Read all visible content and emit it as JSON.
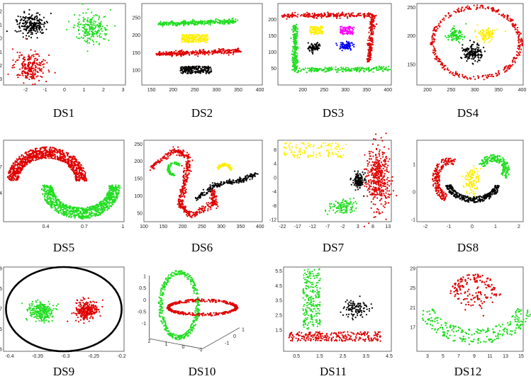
{
  "figure": {
    "colors": {
      "red": "#e00000",
      "green": "#22dd22",
      "black": "#000000",
      "yellow": "#ffee00",
      "magenta": "#ff00ff",
      "blue": "#0000ee"
    },
    "chart_data": [
      {
        "label": "DS1",
        "type": "scatter",
        "xticks": [
          "-2",
          "-1",
          "0",
          "1",
          "2",
          "3"
        ],
        "yticks": [
          "2",
          "1",
          "0",
          "-1",
          "-2",
          "-3"
        ],
        "series": [
          {
            "name": "black",
            "center": [
              -1.4,
              1.6
            ],
            "spread": [
              0.4,
              0.35
            ]
          },
          {
            "name": "green",
            "center": [
              1.5,
              1.4
            ],
            "spread": [
              0.45,
              0.4
            ]
          },
          {
            "name": "red",
            "center": [
              -1.4,
              -1.6
            ],
            "spread": [
              0.45,
              0.45
            ]
          }
        ]
      },
      {
        "label": "DS2",
        "type": "scatter",
        "xticks": [
          "150",
          "200",
          "250",
          "300",
          "350",
          "400"
        ],
        "yticks": [
          "250",
          "200",
          "150",
          "100"
        ],
        "series": [
          {
            "name": "green",
            "shape": "band",
            "x": [
              150,
              330
            ],
            "y": 240
          },
          {
            "name": "yellow",
            "shape": "blob",
            "x": [
              200,
              260
            ],
            "y": 195
          },
          {
            "name": "red",
            "shape": "band",
            "x": [
              140,
              340
            ],
            "y": 148
          },
          {
            "name": "black",
            "shape": "blob",
            "x": [
              200,
              270
            ],
            "y": 103
          }
        ]
      },
      {
        "label": "DS3",
        "type": "scatter",
        "xticks": [
          "200",
          "250",
          "300",
          "350",
          "400"
        ],
        "yticks": [
          "200",
          "150",
          "100",
          "50"
        ],
        "series": [
          {
            "name": "red",
            "shape": "frame-top-right"
          },
          {
            "name": "green",
            "shape": "frame-left-bottom"
          },
          {
            "name": "yellow",
            "center": [
              240,
              170
            ]
          },
          {
            "name": "magenta",
            "center": [
              300,
              170
            ]
          },
          {
            "name": "black",
            "center": [
              240,
              125
            ]
          },
          {
            "name": "blue",
            "center": [
              295,
              125
            ]
          }
        ]
      },
      {
        "label": "DS4",
        "type": "scatter",
        "xticks": [
          "200",
          "250",
          "300",
          "350",
          "400"
        ],
        "yticks": [
          "250",
          "200",
          "150"
        ],
        "series": [
          {
            "name": "red",
            "shape": "ring",
            "center": [
              270,
              195
            ],
            "radius": [
              110,
              85
            ]
          },
          {
            "name": "green",
            "center": [
              235,
              225
            ]
          },
          {
            "name": "yellow",
            "center": [
              300,
              225
            ]
          },
          {
            "name": "black",
            "center": [
              270,
              175
            ]
          }
        ]
      },
      {
        "label": "DS5",
        "type": "scatter",
        "xticks": [
          "0.4",
          "0.7",
          "1"
        ],
        "yticks": [
          "0.7",
          "0.4"
        ],
        "series": [
          {
            "name": "red",
            "shape": "upper-moon"
          },
          {
            "name": "green",
            "shape": "lower-moon"
          }
        ]
      },
      {
        "label": "DS6",
        "type": "scatter",
        "xticks": [
          "100",
          "150",
          "200",
          "250",
          "300",
          "350",
          "400"
        ],
        "yticks": [
          "250",
          "200",
          "150",
          "100",
          "50"
        ],
        "series": [
          {
            "name": "red",
            "shape": "spiral-s"
          },
          {
            "name": "green",
            "shape": "arc"
          },
          {
            "name": "yellow",
            "shape": "arc"
          },
          {
            "name": "black",
            "shape": "curve"
          }
        ]
      },
      {
        "label": "DS7",
        "type": "scatter",
        "xticks": [
          "-22",
          "-17",
          "-12",
          "-7",
          "-2",
          "3",
          "8",
          "13"
        ],
        "yticks": [
          "8",
          "4",
          "0",
          "-4",
          "-8",
          "-12"
        ],
        "series": [
          {
            "name": "yellow",
            "center": [
              -10,
              5.5
            ]
          },
          {
            "name": "red",
            "center": [
              8,
              0
            ]
          },
          {
            "name": "black",
            "center": [
              3,
              -2
            ]
          },
          {
            "name": "green",
            "center": [
              -2,
              -8.5
            ]
          }
        ]
      },
      {
        "label": "DS8",
        "type": "scatter",
        "xticks": [
          "-2",
          "-1",
          "0",
          "1",
          "2"
        ],
        "yticks": [
          "1",
          "0",
          "-1"
        ],
        "series": [
          {
            "name": "red",
            "shape": "left-arc"
          },
          {
            "name": "green",
            "shape": "right-arc"
          },
          {
            "name": "yellow",
            "center": [
              0,
              0
            ]
          },
          {
            "name": "black",
            "shape": "bottom-arc"
          }
        ]
      },
      {
        "label": "DS9",
        "type": "scatter",
        "xticks": [
          "-0.4",
          "-0.35",
          "-0.3",
          "-0.25",
          "-0.2"
        ],
        "yticks": [
          "0.8",
          "0.75",
          "0.7",
          "0.65",
          "0.6"
        ],
        "series": [
          {
            "name": "black",
            "shape": "ellipse"
          },
          {
            "name": "green",
            "center": [
              -0.35,
              0.7
            ]
          },
          {
            "name": "red",
            "center": [
              -0.255,
              0.7
            ]
          }
        ]
      },
      {
        "label": "DS10",
        "type": "scatter3d",
        "xticks": [
          "2",
          "1",
          "0",
          "-1"
        ],
        "yticks": [
          "1",
          "0.5",
          "0",
          "-0.5",
          "-1"
        ],
        "zticks": [
          "1",
          "0",
          "-1"
        ],
        "series": [
          {
            "name": "green",
            "shape": "vertical-ring"
          },
          {
            "name": "red",
            "shape": "horizontal-ring"
          }
        ]
      },
      {
        "label": "DS11",
        "type": "scatter",
        "xticks": [
          "0.5",
          "1.5",
          "2.5",
          "3.5",
          "4.5"
        ],
        "yticks": [
          "5.5",
          "4.5",
          "3.5",
          "2.5",
          "1.5"
        ],
        "series": [
          {
            "name": "green",
            "shape": "vertical-bar"
          },
          {
            "name": "black",
            "center": [
              3,
              2.6
            ]
          },
          {
            "name": "red",
            "shape": "horizontal-bar"
          }
        ]
      },
      {
        "label": "DS12",
        "type": "scatter",
        "xticks": [
          "3",
          "5",
          "7",
          "9",
          "11",
          "13",
          "15"
        ],
        "yticks": [
          "29",
          "25",
          "21",
          "17"
        ],
        "series": [
          {
            "name": "red",
            "shape": "upper-cluster"
          },
          {
            "name": "green",
            "shape": "cup"
          }
        ]
      }
    ]
  }
}
